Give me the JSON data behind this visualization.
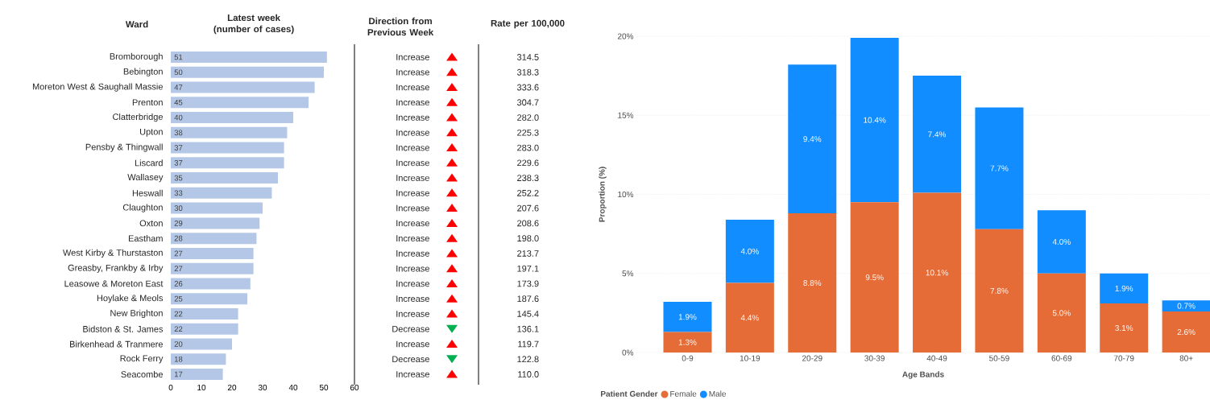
{
  "chart_data": [
    {
      "type": "bar",
      "orientation": "horizontal",
      "title": "Latest week (number of cases)",
      "ylabel": "Ward",
      "categories": [
        "Bromborough",
        "Bebington",
        "Moreton West & Saughall Massie",
        "Prenton",
        "Clatterbridge",
        "Upton",
        "Pensby & Thingwall",
        "Liscard",
        "Wallasey",
        "Heswall",
        "Claughton",
        "Oxton",
        "Eastham",
        "West Kirby & Thurstaston",
        "Greasby, Frankby & Irby",
        "Leasowe & Moreton East",
        "Hoylake & Meols",
        "New Brighton",
        "Bidston & St. James",
        "Birkenhead & Tranmere",
        "Rock Ferry",
        "Seacombe"
      ],
      "values": [
        51,
        50,
        47,
        45,
        40,
        38,
        37,
        37,
        35,
        33,
        30,
        29,
        28,
        27,
        27,
        26,
        25,
        22,
        22,
        20,
        18,
        17
      ],
      "color": "#b4c7e7",
      "xlim": [
        0,
        60
      ],
      "xticks": [
        0,
        10,
        20,
        30,
        40,
        50,
        60
      ],
      "data_labels": true
    },
    {
      "type": "other",
      "title": "Direction from Previous Week",
      "categories": [
        "Increase",
        "Increase",
        "Increase",
        "Increase",
        "Increase",
        "Increase",
        "Increase",
        "Increase",
        "Increase",
        "Increase",
        "Increase",
        "Increase",
        "Increase",
        "Increase",
        "Increase",
        "Increase",
        "Increase",
        "Increase",
        "Decrease",
        "Increase",
        "Decrease",
        "Increase"
      ],
      "colors": [
        "#ff0000",
        "#ff0000",
        "#ff0000",
        "#ff0000",
        "#ff0000",
        "#ff0000",
        "#ff0000",
        "#ff0000",
        "#ff0000",
        "#ff0000",
        "#ff0000",
        "#ff0000",
        "#ff0000",
        "#ff0000",
        "#ff0000",
        "#ff0000",
        "#ff0000",
        "#ff0000",
        "#00b050",
        "#ff0000",
        "#00b050",
        "#ff0000"
      ]
    },
    {
      "type": "other",
      "title": "Rate per 100,000",
      "values": [
        314.5,
        318.3,
        333.6,
        304.7,
        282.0,
        225.3,
        283.0,
        229.6,
        238.3,
        252.2,
        207.6,
        208.6,
        198.0,
        213.7,
        197.1,
        173.9,
        187.6,
        145.4,
        136.1,
        119.7,
        122.8,
        110.0
      ],
      "value_labels": [
        "314.5",
        "318.3",
        "333.6",
        "304.7",
        "282.0",
        "225.3",
        "283.0",
        "229.6",
        "238.3",
        "252.2",
        "207.6",
        "208.6",
        "198.0",
        "213.7",
        "197.1",
        "173.9",
        "187.6",
        "145.4",
        "136.1",
        "119.7",
        "122.8",
        "110.0"
      ]
    },
    {
      "type": "bar",
      "stacked": true,
      "xlabel": "Age Bands",
      "ylabel": "Proportion (%)",
      "categories": [
        "0-9",
        "10-19",
        "20-29",
        "30-39",
        "40-49",
        "50-59",
        "60-69",
        "70-79",
        "80+"
      ],
      "series": [
        {
          "name": "Female",
          "color": "#e66c37",
          "values": [
            1.3,
            4.4,
            8.8,
            9.5,
            10.1,
            7.8,
            5.0,
            3.1,
            2.6
          ],
          "value_labels": [
            "1.3%",
            "4.4%",
            "8.8%",
            "9.5%",
            "10.1%",
            "7.8%",
            "5.0%",
            "3.1%",
            "2.6%"
          ]
        },
        {
          "name": "Male",
          "color": "#118dff",
          "values": [
            1.9,
            4.0,
            9.4,
            10.4,
            7.4,
            7.7,
            4.0,
            1.9,
            0.7
          ],
          "value_labels": [
            "1.9%",
            "4.0%",
            "9.4%",
            "10.4%",
            "7.4%",
            "7.7%",
            "4.0%",
            "1.9%",
            "0.7%"
          ]
        }
      ],
      "ylim": [
        0,
        20
      ],
      "yticks": [
        {
          "value": 0,
          "label": "0%"
        },
        {
          "value": 5,
          "label": "5%"
        },
        {
          "value": 10,
          "label": "10%"
        },
        {
          "value": 15,
          "label": "15%"
        },
        {
          "value": 20,
          "label": "20%"
        }
      ],
      "grid": "y",
      "legend": "bottom",
      "legend_title": "Patient Gender"
    }
  ]
}
